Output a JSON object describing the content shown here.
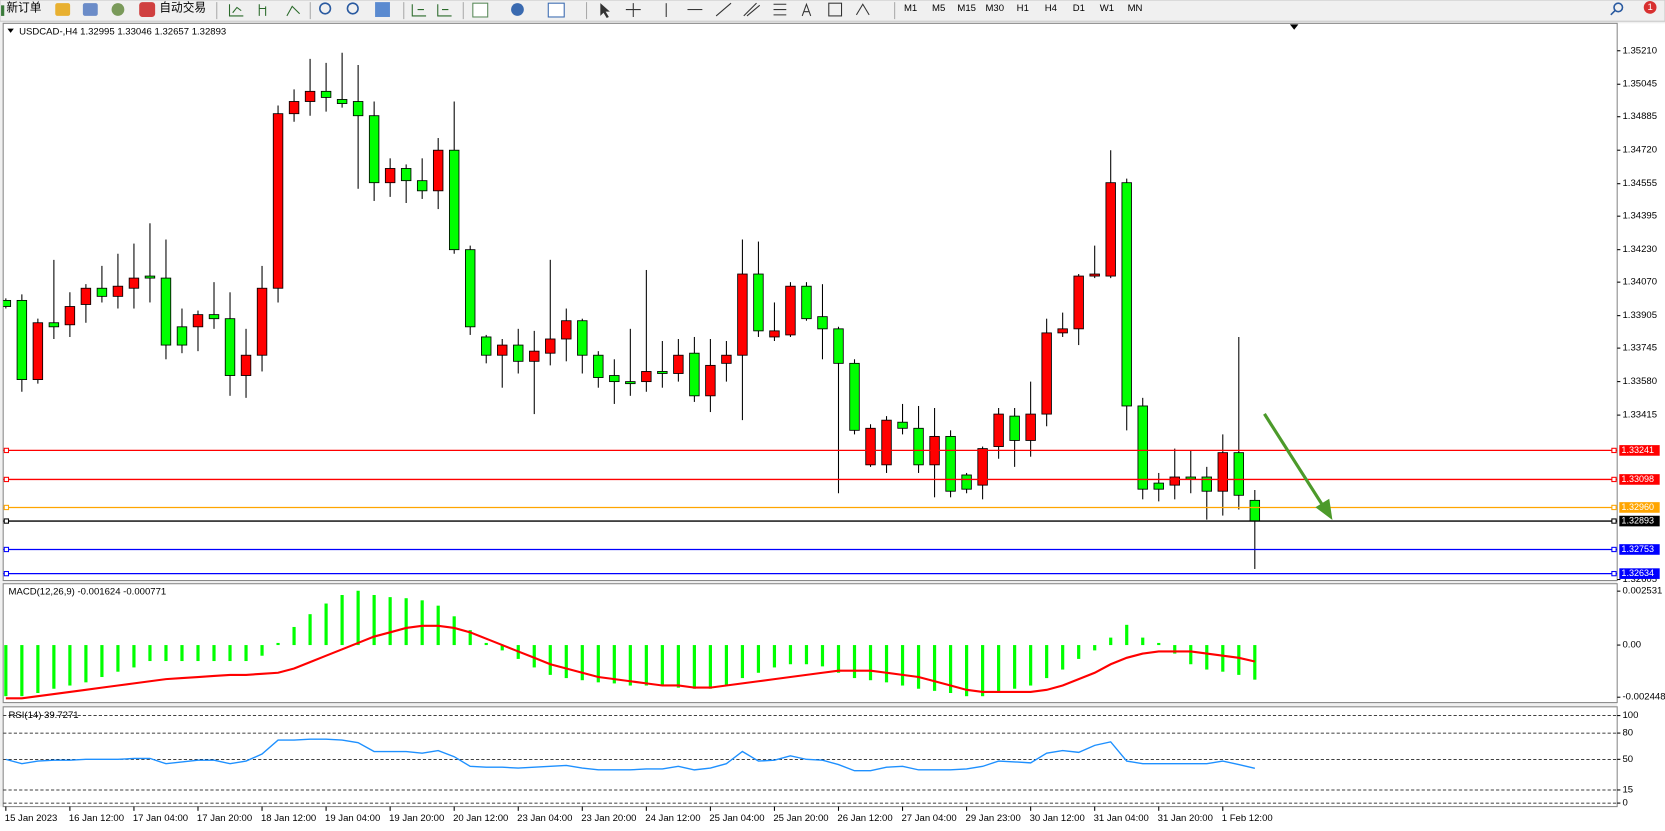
{
  "toolbar": {
    "new_order": "新订单",
    "auto_trading": "自动交易",
    "timeframes": [
      "M1",
      "M5",
      "M15",
      "M30",
      "H1",
      "H4",
      "D1",
      "W1",
      "MN"
    ],
    "badge": 1
  },
  "chart_data": [
    {
      "type": "candlestick",
      "title": "USDCAD-,H4  1.32995 1.33046 1.32657 1.32893",
      "categories": [
        "15 Jan 2023",
        null,
        null,
        null,
        "16 Jan 12:00",
        null,
        null,
        null,
        "17 Jan 04:00",
        null,
        null,
        null,
        "17 Jan 20:00",
        null,
        null,
        null,
        "18 Jan 12:00",
        null,
        null,
        null,
        "19 Jan 04:00",
        null,
        null,
        null,
        "19 Jan 20:00",
        null,
        null,
        null,
        "20 Jan 12:00",
        null,
        null,
        null,
        "23 Jan 04:00",
        null,
        null,
        null,
        "23 Jan 20:00",
        null,
        null,
        null,
        "24 Jan 12:00",
        null,
        null,
        null,
        "25 Jan 04:00",
        null,
        null,
        null,
        "25 Jan 20:00",
        null,
        null,
        null,
        "26 Jan 12:00",
        null,
        null,
        null,
        "27 Jan 04:00",
        null,
        null,
        null,
        "29 Jan 23:00",
        null,
        null,
        null,
        "30 Jan 12:00",
        null,
        null,
        null,
        "31 Jan 04:00",
        null,
        null,
        null,
        "31 Jan 20:00",
        null,
        null,
        null,
        "1 Feb 12:00",
        null,
        null
      ],
      "open": [
        1.3398,
        1.3398,
        1.3359,
        1.3387,
        1.3386,
        1.3396,
        1.3404,
        1.34,
        1.3404,
        1.341,
        1.3409,
        1.3385,
        1.3385,
        1.3391,
        1.3389,
        1.3361,
        1.3371,
        1.3404,
        1.349,
        1.3496,
        1.3501,
        1.3497,
        1.3496,
        1.3489,
        1.3456,
        1.3463,
        1.3457,
        1.3452,
        1.3472,
        1.3423,
        1.338,
        1.3371,
        1.3376,
        1.3368,
        1.3372,
        1.3379,
        1.3388,
        1.3371,
        1.3361,
        1.3358,
        1.3358,
        1.3363,
        1.3362,
        1.3372,
        1.3351,
        1.3367,
        1.3371,
        1.3411,
        1.338,
        1.3381,
        1.3405,
        1.339,
        1.3384,
        1.3367,
        1.3317,
        1.3317,
        1.3338,
        1.3335,
        1.3317,
        1.3331,
        1.3312,
        1.3307,
        1.3326,
        1.3341,
        1.3329,
        1.3342,
        1.3382,
        1.3384,
        1.341,
        1.341,
        1.3456,
        1.3346,
        1.3308,
        1.3307,
        1.3311,
        1.3311,
        1.3304,
        1.3323,
        1.32995
      ],
      "high": [
        1.3399,
        1.3401,
        1.3389,
        1.3418,
        1.3402,
        1.3406,
        1.3415,
        1.3421,
        1.3426,
        1.3436,
        1.3428,
        1.3394,
        1.3393,
        1.3407,
        1.3402,
        1.3384,
        1.3415,
        1.3494,
        1.3502,
        1.3517,
        1.3515,
        1.352,
        1.3514,
        1.3496,
        1.3468,
        1.3465,
        1.3468,
        1.3478,
        1.3496,
        1.3425,
        1.3381,
        1.3379,
        1.3384,
        1.3383,
        1.3418,
        1.3394,
        1.3389,
        1.3373,
        1.3369,
        1.3384,
        1.3413,
        1.3378,
        1.3379,
        1.338,
        1.3379,
        1.3378,
        1.3428,
        1.3427,
        1.3397,
        1.3407,
        1.3407,
        1.3406,
        1.3385,
        1.3369,
        1.3337,
        1.3341,
        1.3347,
        1.3346,
        1.3345,
        1.3334,
        1.3313,
        1.3326,
        1.3345,
        1.3345,
        1.3358,
        1.3389,
        1.3392,
        1.3411,
        1.3425,
        1.3472,
        1.3458,
        1.335,
        1.3313,
        1.3325,
        1.3324,
        1.3316,
        1.3332,
        1.338,
        1.33046
      ],
      "low": [
        1.3394,
        1.3353,
        1.3357,
        1.3379,
        1.338,
        1.3387,
        1.3397,
        1.3394,
        1.3394,
        1.3397,
        1.3369,
        1.3372,
        1.3373,
        1.3384,
        1.3351,
        1.335,
        1.3363,
        1.3397,
        1.3486,
        1.3489,
        1.3491,
        1.3493,
        1.3453,
        1.3447,
        1.3449,
        1.3446,
        1.3448,
        1.3443,
        1.3421,
        1.3381,
        1.3367,
        1.3355,
        1.3362,
        1.3342,
        1.3366,
        1.3368,
        1.3362,
        1.3355,
        1.3347,
        1.3351,
        1.3353,
        1.3355,
        1.3358,
        1.3348,
        1.3343,
        1.3358,
        1.3339,
        1.338,
        1.3378,
        1.338,
        1.3388,
        1.3369,
        1.3303,
        1.3332,
        1.3316,
        1.3313,
        1.3332,
        1.3313,
        1.3301,
        1.3301,
        1.3303,
        1.33,
        1.332,
        1.3316,
        1.3321,
        1.3336,
        1.338,
        1.3376,
        1.3409,
        1.3409,
        1.3334,
        1.33,
        1.3299,
        1.33,
        1.3303,
        1.329,
        1.3292,
        1.3295,
        1.32657
      ],
      "close": [
        1.3395,
        1.3359,
        1.3387,
        1.3385,
        1.3395,
        1.3404,
        1.34,
        1.3405,
        1.3409,
        1.3409,
        1.3376,
        1.3376,
        1.3391,
        1.3389,
        1.3361,
        1.3371,
        1.3404,
        1.349,
        1.3496,
        1.3501,
        1.3498,
        1.3495,
        1.3489,
        1.3456,
        1.3463,
        1.3457,
        1.3452,
        1.3472,
        1.3423,
        1.3385,
        1.3371,
        1.3376,
        1.3368,
        1.3373,
        1.3379,
        1.3388,
        1.3371,
        1.336,
        1.3358,
        1.3357,
        1.3363,
        1.3362,
        1.3371,
        1.3351,
        1.3366,
        1.3371,
        1.3411,
        1.3383,
        1.3383,
        1.3405,
        1.3389,
        1.3384,
        1.3367,
        1.3334,
        1.3335,
        1.3339,
        1.3335,
        1.3317,
        1.3331,
        1.3304,
        1.3305,
        1.3325,
        1.3342,
        1.3329,
        1.3342,
        1.3382,
        1.3384,
        1.341,
        1.3411,
        1.3456,
        1.3346,
        1.3305,
        1.3305,
        1.3311,
        1.331,
        1.3304,
        1.3323,
        1.3302,
        1.32893
      ],
      "up_color": "#ff0000",
      "down_color": "#00ff00",
      "ylim": [
        1.326,
        1.35345
      ],
      "yticks": [
        {
          "value": 1.3521,
          "label": "1.35210"
        },
        1.35045,
        1.34885,
        {
          "value": 1.3472,
          "label": "1.34720"
        },
        1.34555,
        1.34395,
        {
          "value": 1.3423,
          "label": "1.34230"
        },
        {
          "value": 1.3407,
          "label": "1.34070"
        },
        1.33905,
        1.33745,
        {
          "value": 1.3358,
          "label": "1.33580"
        },
        1.33415,
        1.32605
      ],
      "hlines": [
        {
          "value": 1.33241,
          "color": "#ff0000"
        },
        {
          "value": 1.33098,
          "color": "#ff0000"
        },
        {
          "value": 1.3296,
          "label": "1.32960",
          "color": "#ffa500"
        },
        {
          "value": 1.32893,
          "color": "#000000"
        },
        {
          "value": 1.32753,
          "color": "#0000ff"
        },
        {
          "value": 1.32634,
          "color": "#0000ff"
        }
      ],
      "grid": false
    },
    {
      "type": "macd",
      "title": "MACD(12,26,9) -0.001624 -0.000771",
      "values": [
        -0.0024,
        -0.0024,
        -0.00225,
        -0.00205,
        -0.0019,
        -0.00175,
        -0.0015,
        -0.00125,
        -0.00105,
        -0.00075,
        -0.00075,
        -0.00075,
        -0.00075,
        -0.00075,
        -0.00075,
        -0.00075,
        -0.0005,
        0.0001,
        0.00085,
        0.00145,
        0.00195,
        0.00235,
        0.00255,
        0.00235,
        0.00225,
        0.0022,
        0.0021,
        0.00185,
        0.00135,
        0.0007,
        0.0001,
        -0.00025,
        -0.00065,
        -0.00105,
        -0.0014,
        -0.00155,
        -0.00165,
        -0.00175,
        -0.0018,
        -0.0019,
        -0.0019,
        -0.0019,
        -0.002,
        -0.00205,
        -0.00205,
        -0.0019,
        -0.00155,
        -0.0013,
        -0.00105,
        -0.0009,
        -0.0009,
        -0.001,
        -0.0013,
        -0.00155,
        -0.00165,
        -0.00175,
        -0.0019,
        -0.00205,
        -0.00215,
        -0.00225,
        -0.0024,
        -0.0024,
        -0.00225,
        -0.00205,
        -0.0019,
        -0.00155,
        -0.00115,
        -0.00065,
        -0.00025,
        0.00035,
        0.00095,
        0.00035,
        0.0001,
        -0.0004,
        -0.0009,
        -0.00115,
        -0.00125,
        -0.0014,
        -0.001624
      ],
      "signal": [
        -0.0025,
        -0.0025,
        -0.0024,
        -0.0023,
        -0.0022,
        -0.0021,
        -0.002,
        -0.0019,
        -0.0018,
        -0.0017,
        -0.0016,
        -0.00155,
        -0.0015,
        -0.00145,
        -0.0014,
        -0.0014,
        -0.00135,
        -0.0013,
        -0.0011,
        -0.0008,
        -0.0005,
        -0.0002,
        0.0001,
        0.0004,
        0.0006,
        0.0008,
        0.0009,
        0.0009,
        0.0008,
        0.0006,
        0.0003,
        0,
        -0.0003,
        -0.0006,
        -0.0009,
        -0.0011,
        -0.0013,
        -0.0015,
        -0.0016,
        -0.0017,
        -0.0018,
        -0.0019,
        -0.0019,
        -0.002,
        -0.002,
        -0.0019,
        -0.0018,
        -0.0017,
        -0.0016,
        -0.0015,
        -0.0014,
        -0.0013,
        -0.0012,
        -0.0012,
        -0.0012,
        -0.0013,
        -0.0014,
        -0.0015,
        -0.0017,
        -0.0019,
        -0.0021,
        -0.0022,
        -0.0022,
        -0.0022,
        -0.0022,
        -0.0021,
        -0.0019,
        -0.0016,
        -0.0013,
        -0.0009,
        -0.0006,
        -0.0004,
        -0.0003,
        -0.0003,
        -0.0003,
        -0.0004,
        -0.0005,
        -0.0006,
        -0.000771
      ],
      "color": "#00ff00",
      "signal_color": "#ff0000",
      "ylim": [
        -0.0027,
        0.00288
      ],
      "yticks": [
        0.002531,
        {
          "value": 0,
          "label": "0.00"
        },
        -0.002448
      ],
      "grid": false
    },
    {
      "type": "line",
      "title": "RSI(14) 39.7271",
      "values": [
        50,
        45,
        48,
        49,
        49,
        50,
        50,
        50,
        51,
        51,
        45,
        47,
        49,
        49,
        45,
        48,
        56,
        72,
        72,
        73,
        73,
        72,
        69,
        59,
        59,
        59,
        57,
        60,
        53,
        42,
        41,
        41,
        40,
        41,
        42,
        43,
        40,
        38,
        38,
        38,
        39,
        39,
        42,
        38,
        40,
        45,
        59,
        48,
        49,
        54,
        50,
        49,
        44,
        37,
        37,
        41,
        42,
        38,
        38,
        38,
        39,
        42,
        48,
        47,
        46,
        57,
        60,
        58,
        66,
        70,
        48,
        45,
        45,
        45,
        45,
        45,
        48,
        44,
        39.7271
      ],
      "color": "#1e90ff",
      "ylim": [
        -4,
        110
      ],
      "yticks": [
        100,
        80,
        50,
        15,
        0
      ],
      "grid": true
    }
  ]
}
